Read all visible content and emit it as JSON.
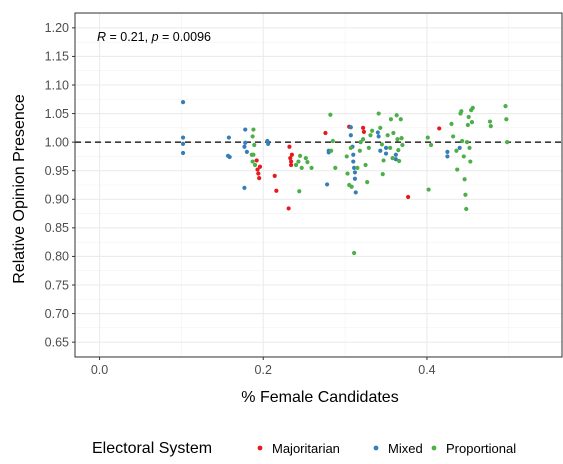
{
  "chart_data": {
    "type": "scatter",
    "xlabel": "% Female Candidates",
    "ylabel": "Relative Opinion Presence",
    "xlim": [
      -0.03,
      0.565
    ],
    "ylim": [
      0.624,
      1.226
    ],
    "x_ticks": [
      0.0,
      0.2,
      0.4
    ],
    "x_tick_labels": [
      "0.0",
      "0.2",
      "0.4"
    ],
    "y_ticks": [
      0.65,
      0.7,
      0.75,
      0.8,
      0.85,
      0.9,
      0.95,
      1.0,
      1.05,
      1.1,
      1.15,
      1.2
    ],
    "y_tick_labels": [
      "0.65",
      "0.70",
      "0.75",
      "0.80",
      "0.85",
      "0.90",
      "0.95",
      "1.00",
      "1.05",
      "1.10",
      "1.15",
      "1.20"
    ],
    "reference_line": {
      "y": 1.0,
      "style": "dashed"
    },
    "grid": true,
    "annotation": {
      "r_label": "R",
      "r_text": " = 0.21, ",
      "p_label": "p",
      "p_text": " = 0.0096"
    },
    "legend": {
      "title": "Electoral System",
      "position": "bottom",
      "entries": [
        {
          "name": "Majoritarian",
          "color": "#e41a1c"
        },
        {
          "name": "Mixed",
          "color": "#377eb8"
        },
        {
          "name": "Proportional",
          "color": "#4daf4a"
        }
      ]
    },
    "series": [
      {
        "name": "Majoritarian",
        "color": "#e41a1c",
        "points": [
          [
            0.192,
            0.968
          ],
          [
            0.193,
            0.952
          ],
          [
            0.194,
            0.945
          ],
          [
            0.195,
            0.937
          ],
          [
            0.196,
            0.957
          ],
          [
            0.232,
            0.992
          ],
          [
            0.233,
            0.972
          ],
          [
            0.234,
            0.966
          ],
          [
            0.235,
            0.978
          ],
          [
            0.231,
            0.884
          ],
          [
            0.214,
            0.941
          ],
          [
            0.216,
            0.915
          ],
          [
            0.234,
            0.96
          ],
          [
            0.276,
            1.016
          ],
          [
            0.305,
            1.027
          ],
          [
            0.322,
            1.025
          ],
          [
            0.323,
            1.018
          ],
          [
            0.377,
            0.904
          ],
          [
            0.415,
            1.024
          ]
        ]
      },
      {
        "name": "Mixed",
        "color": "#377eb8",
        "points": [
          [
            0.102,
            1.07
          ],
          [
            0.102,
            1.008
          ],
          [
            0.102,
            0.997
          ],
          [
            0.102,
            0.981
          ],
          [
            0.158,
            1.008
          ],
          [
            0.157,
            0.976
          ],
          [
            0.159,
            0.974
          ],
          [
            0.178,
            1.022
          ],
          [
            0.178,
            0.999
          ],
          [
            0.177,
            0.992
          ],
          [
            0.18,
            0.983
          ],
          [
            0.177,
            0.92
          ],
          [
            0.205,
            1.002
          ],
          [
            0.206,
            0.997
          ],
          [
            0.28,
            0.985
          ],
          [
            0.278,
            0.926
          ],
          [
            0.28,
            0.982
          ],
          [
            0.307,
            1.026
          ],
          [
            0.307,
            1.012
          ],
          [
            0.309,
            0.992
          ],
          [
            0.31,
            0.978
          ],
          [
            0.31,
            0.966
          ],
          [
            0.311,
            0.955
          ],
          [
            0.312,
            0.947
          ],
          [
            0.312,
            0.936
          ],
          [
            0.313,
            0.912
          ],
          [
            0.34,
            1.017
          ],
          [
            0.341,
            1.01
          ],
          [
            0.343,
            0.985
          ],
          [
            0.35,
            0.99
          ],
          [
            0.35,
            0.98
          ],
          [
            0.362,
            0.978
          ],
          [
            0.362,
            0.97
          ],
          [
            0.425,
            0.983
          ],
          [
            0.425,
            0.975
          ],
          [
            0.44,
            0.99
          ]
        ]
      },
      {
        "name": "Proportional",
        "color": "#4daf4a",
        "points": [
          [
            0.188,
            1.022
          ],
          [
            0.187,
            1.01
          ],
          [
            0.189,
            0.995
          ],
          [
            0.188,
            0.978
          ],
          [
            0.187,
            0.966
          ],
          [
            0.186,
            0.978
          ],
          [
            0.19,
            0.96
          ],
          [
            0.245,
            0.976
          ],
          [
            0.243,
            0.966
          ],
          [
            0.244,
            0.914
          ],
          [
            0.247,
            0.955
          ],
          [
            0.252,
            0.972
          ],
          [
            0.254,
            0.965
          ],
          [
            0.24,
            0.96
          ],
          [
            0.259,
            0.955
          ],
          [
            0.282,
            1.048
          ],
          [
            0.285,
            1.002
          ],
          [
            0.288,
            0.955
          ],
          [
            0.283,
            0.985
          ],
          [
            0.302,
            0.975
          ],
          [
            0.303,
            0.945
          ],
          [
            0.305,
            0.925
          ],
          [
            0.308,
            0.922
          ],
          [
            0.307,
            0.99
          ],
          [
            0.315,
            0.955
          ],
          [
            0.318,
            0.985
          ],
          [
            0.311,
            0.806
          ],
          [
            0.319,
            1.0
          ],
          [
            0.322,
            1.005
          ],
          [
            0.325,
            0.96
          ],
          [
            0.329,
            0.99
          ],
          [
            0.327,
            0.93
          ],
          [
            0.331,
            1.012
          ],
          [
            0.333,
            1.02
          ],
          [
            0.341,
            1.05
          ],
          [
            0.343,
            1.025
          ],
          [
            0.345,
            0.996
          ],
          [
            0.347,
            0.968
          ],
          [
            0.346,
            0.944
          ],
          [
            0.352,
            1.012
          ],
          [
            0.355,
            0.99
          ],
          [
            0.356,
            1.04
          ],
          [
            0.358,
            0.972
          ],
          [
            0.359,
            1.016
          ],
          [
            0.363,
            1.047
          ],
          [
            0.364,
            1.005
          ],
          [
            0.365,
            0.986
          ],
          [
            0.366,
            0.967
          ],
          [
            0.368,
            1.04
          ],
          [
            0.369,
            1.007
          ],
          [
            0.37,
            0.995
          ],
          [
            0.401,
            1.008
          ],
          [
            0.402,
            0.917
          ],
          [
            0.405,
            0.995
          ],
          [
            0.43,
            1.032
          ],
          [
            0.432,
            1.01
          ],
          [
            0.436,
            0.985
          ],
          [
            0.437,
            0.952
          ],
          [
            0.441,
            1.05
          ],
          [
            0.442,
            1.054
          ],
          [
            0.443,
            1.002
          ],
          [
            0.445,
            0.975
          ],
          [
            0.446,
            0.935
          ],
          [
            0.447,
            0.908
          ],
          [
            0.448,
            0.883
          ],
          [
            0.449,
            1.0
          ],
          [
            0.45,
            1.03
          ],
          [
            0.451,
            1.044
          ],
          [
            0.452,
            0.99
          ],
          [
            0.453,
            0.966
          ],
          [
            0.454,
            1.056
          ],
          [
            0.455,
            1.035
          ],
          [
            0.456,
            1.06
          ],
          [
            0.477,
            1.036
          ],
          [
            0.478,
            1.028
          ],
          [
            0.496,
            1.063
          ],
          [
            0.497,
            1.04
          ],
          [
            0.498,
            1.0
          ]
        ]
      }
    ]
  }
}
